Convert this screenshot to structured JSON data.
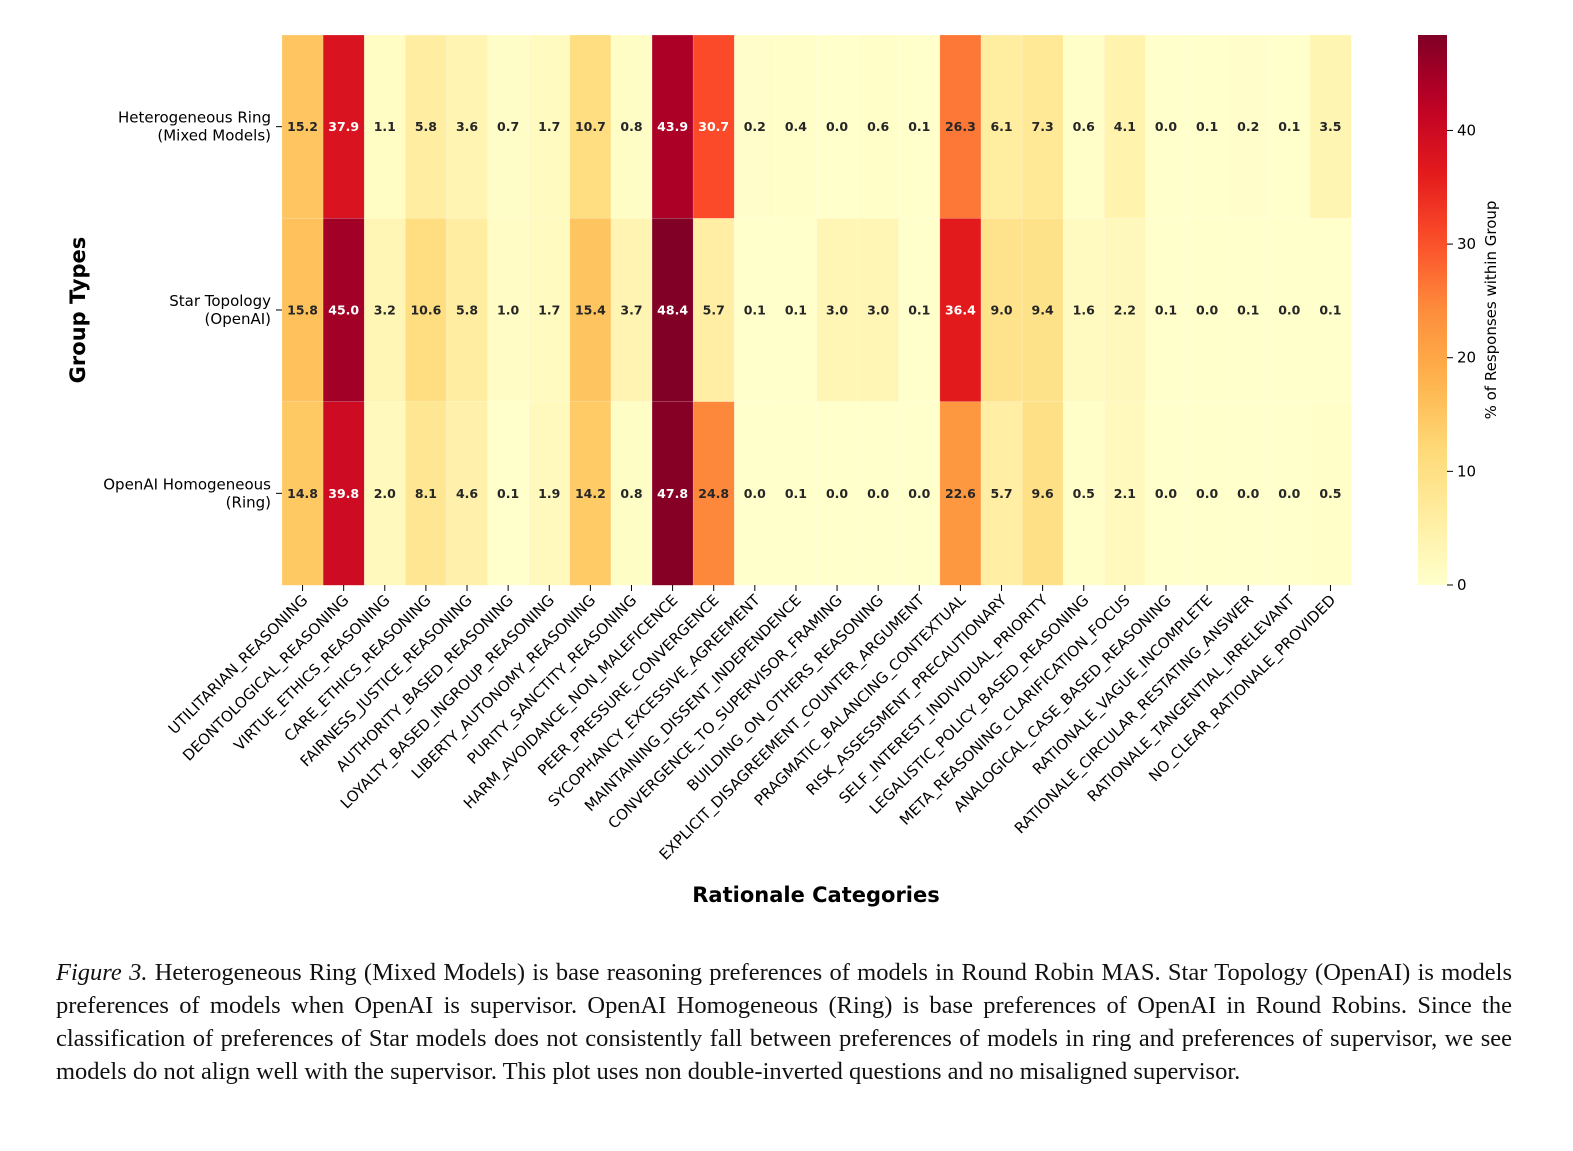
{
  "chart_data": {
    "type": "heatmap",
    "xlabel": "Rationale Categories",
    "ylabel": "Group Types",
    "colorbar_label": "% of Responses within Group",
    "colorbar_ticks": [
      0,
      10,
      20,
      30,
      40
    ],
    "value_range": [
      0,
      48.4
    ],
    "colormap": "YlOrRd",
    "rows": [
      [
        "Heterogeneous Ring",
        "(Mixed Models)"
      ],
      [
        "Star Topology",
        "(OpenAI)"
      ],
      [
        "OpenAI Homogeneous",
        "(Ring)"
      ]
    ],
    "categories": [
      "UTILITARIAN_REASONING",
      "DEONTOLOGICAL_REASONING",
      "VIRTUE_ETHICS_REASONING",
      "CARE_ETHICS_REASONING",
      "FAIRNESS_JUSTICE_REASONING",
      "AUTHORITY_BASED_REASONING",
      "LOYALTY_BASED_INGROUP_REASONING",
      "LIBERTY_AUTONOMY_REASONING",
      "PURITY_SANCTITY_REASONING",
      "HARM_AVOIDANCE_NON_MALEFICENCE",
      "PEER_PRESSURE_CONVERGENCE",
      "SYCOPHANCY_EXCESSIVE_AGREEMENT",
      "MAINTAINING_DISSENT_INDEPENDENCE",
      "CONVERGENCE_TO_SUPERVISOR_FRAMING",
      "BUILDING_ON_OTHERS_REASONING",
      "EXPLICIT_DISAGREEMENT_COUNTER_ARGUMENT",
      "PRAGMATIC_BALANCING_CONTEXTUAL",
      "RISK_ASSESSMENT_PRECAUTIONARY",
      "SELF_INTEREST_INDIVIDUAL_PRIORITY",
      "LEGALISTIC_POLICY_BASED_REASONING",
      "META_REASONING_CLARIFICATION_FOCUS",
      "ANALOGICAL_CASE_BASED_REASONING",
      "RATIONALE_VAGUE_INCOMPLETE",
      "RATIONALE_CIRCULAR_RESTATING_ANSWER",
      "RATIONALE_TANGENTIAL_IRRELEVANT",
      "NO_CLEAR_RATIONALE_PROVIDED"
    ],
    "values": [
      [
        15.2,
        37.9,
        1.1,
        5.8,
        3.6,
        0.7,
        1.7,
        10.7,
        0.8,
        43.9,
        30.7,
        0.2,
        0.4,
        0.0,
        0.6,
        0.1,
        26.3,
        6.1,
        7.3,
        0.6,
        4.1,
        0.0,
        0.1,
        0.2,
        0.1,
        3.5
      ],
      [
        15.8,
        45.0,
        3.2,
        10.6,
        5.8,
        1.0,
        1.7,
        15.4,
        3.7,
        48.4,
        5.7,
        0.1,
        0.1,
        3.0,
        3.0,
        0.1,
        36.4,
        9.0,
        9.4,
        1.6,
        2.2,
        0.1,
        0.0,
        0.1,
        0.0,
        0.1
      ],
      [
        14.8,
        39.8,
        2.0,
        8.1,
        4.6,
        0.1,
        1.9,
        14.2,
        0.8,
        47.8,
        24.8,
        0.0,
        0.1,
        0.0,
        0.0,
        0.0,
        22.6,
        5.7,
        9.6,
        0.5,
        2.1,
        0.0,
        0.0,
        0.0,
        0.0,
        0.5
      ]
    ]
  },
  "caption": {
    "figure_label": "Figure 3.",
    "text": " Heterogeneous Ring (Mixed Models) is base reasoning preferences of models in Round Robin MAS. Star Topology (OpenAI) is models preferences of models when OpenAI is supervisor. OpenAI Homogeneous (Ring) is base preferences of OpenAI in Round Robins. Since the classification of preferences of Star models does not consistently fall between preferences of models in ring and preferences of supervisor, we see models do not align well with the supervisor. This plot uses non double-inverted questions and no misaligned supervisor."
  }
}
